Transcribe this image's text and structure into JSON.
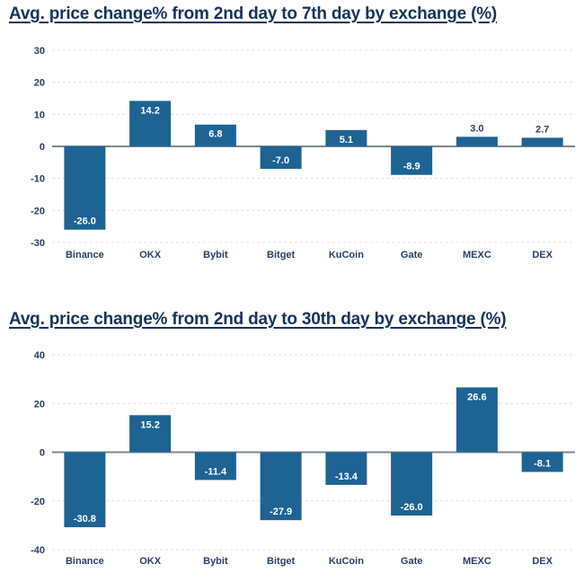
{
  "colors": {
    "background": "#ffffff",
    "bar": "#1d6394",
    "title": "#16335c",
    "axis_text": "#2a3f5f",
    "grid_line": "#e0e0e0",
    "zero_line": "#7b8794",
    "label_inside": "#ffffff",
    "label_outside": "#2a3f5f"
  },
  "chart_data": [
    {
      "type": "bar",
      "title": "Avg. price change% from 2nd day to 7th day by exchange (%)",
      "categories": [
        "Binance",
        "OKX",
        "Bybit",
        "Bitget",
        "KuCoin",
        "Gate",
        "MEXC",
        "DEX"
      ],
      "values": [
        -26.0,
        14.2,
        6.8,
        -7.0,
        5.1,
        -8.9,
        3.0,
        2.7
      ],
      "value_labels": [
        "-26.0",
        "14.2",
        "6.8",
        "-7.0",
        "5.1",
        "-8.9",
        "3.0",
        "2.7"
      ],
      "xlabel": "",
      "ylabel": "",
      "ylim": [
        -30,
        30
      ],
      "yticks": [
        30,
        20,
        10,
        0,
        -10,
        -20,
        -30
      ],
      "grid": "dashed horizontal",
      "legend": "none"
    },
    {
      "type": "bar",
      "title": "Avg. price change% from 2nd day to 30th day by exchange (%)",
      "categories": [
        "Binance",
        "OKX",
        "Bybit",
        "Bitget",
        "KuCoin",
        "Gate",
        "MEXC",
        "DEX"
      ],
      "values": [
        -30.8,
        15.2,
        -11.4,
        -27.9,
        -13.4,
        -26.0,
        26.6,
        -8.1
      ],
      "value_labels": [
        "-30.8",
        "15.2",
        "-11.4",
        "-27.9",
        "-13.4",
        "-26.0",
        "26.6",
        "-8.1"
      ],
      "xlabel": "",
      "ylabel": "",
      "ylim": [
        -40,
        40
      ],
      "yticks": [
        40,
        20,
        0,
        -20,
        -40
      ],
      "grid": "dashed horizontal",
      "legend": "none"
    }
  ]
}
